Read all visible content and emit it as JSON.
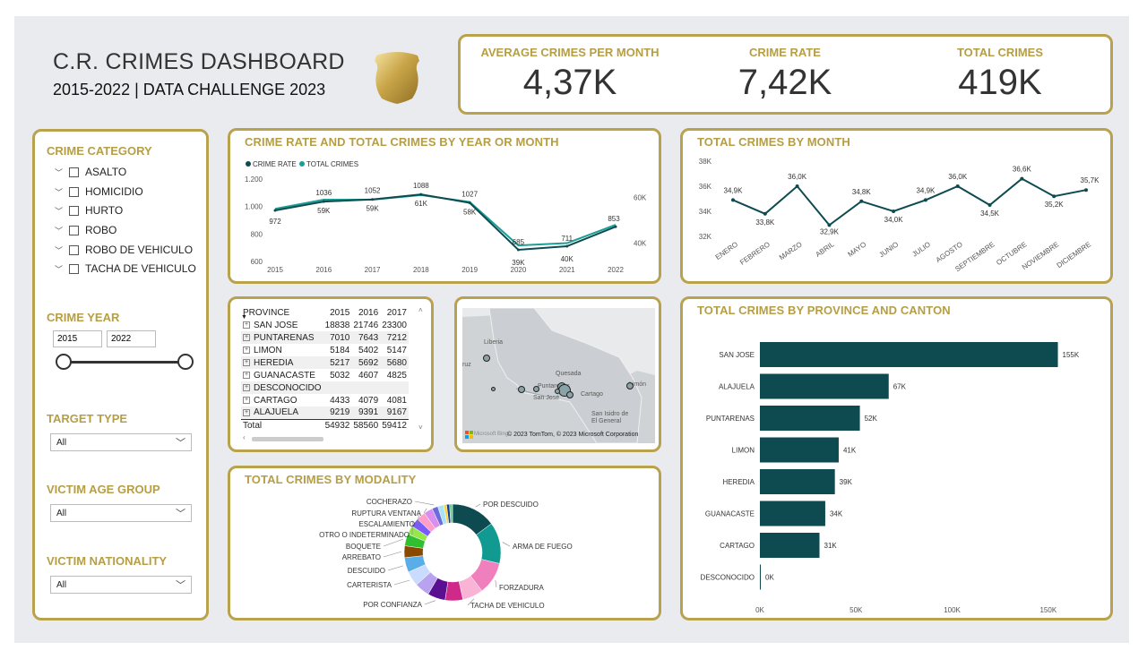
{
  "header": {
    "title": "C.R. CRIMES DASHBOARD",
    "subtitle": "2015-2022 | DATA CHALLENGE 2023",
    "badge_icon": "police-badge-icon"
  },
  "kpis": [
    {
      "label": "AVERAGE CRIMES PER MONTH",
      "value": "4,37K"
    },
    {
      "label": "CRIME RATE",
      "value": "7,42K"
    },
    {
      "label": "TOTAL CRIMES",
      "value": "419K"
    }
  ],
  "filters": {
    "category": {
      "label": "CRIME CATEGORY",
      "items": [
        "ASALTO",
        "HOMICIDIO",
        "HURTO",
        "ROBO",
        "ROBO DE VEHICULO",
        "TACHA DE VEHICULO"
      ]
    },
    "year": {
      "label": "CRIME YEAR",
      "from": "2015",
      "to": "2022"
    },
    "target_type": {
      "label": "TARGET TYPE",
      "value": "All"
    },
    "victim_age": {
      "label": "VICTIM AGE GROUP",
      "value": "All"
    },
    "victim_nat": {
      "label": "VICTIM NATIONALITY",
      "value": "All"
    }
  },
  "rate_chart": {
    "title": "CRIME RATE AND TOTAL CRIMES BY YEAR OR MONTH",
    "legend": [
      "CRIME RATE",
      "TOTAL CRIMES"
    ]
  },
  "month_chart": {
    "title": "TOTAL CRIMES BY MONTH"
  },
  "province_chart": {
    "title": "TOTAL CRIMES BY PROVINCE AND CANTON"
  },
  "modality_chart": {
    "title": "TOTAL CRIMES BY MODALITY"
  },
  "matrix": {
    "headers": [
      "PROVINCE",
      "2015",
      "2016",
      "2017"
    ],
    "rows": [
      {
        "name": "SAN JOSE",
        "v": [
          "18838",
          "21746",
          "23300"
        ]
      },
      {
        "name": "PUNTARENAS",
        "v": [
          "7010",
          "7643",
          "7212"
        ]
      },
      {
        "name": "LIMON",
        "v": [
          "5184",
          "5402",
          "5147"
        ]
      },
      {
        "name": "HEREDIA",
        "v": [
          "5217",
          "5692",
          "5680"
        ]
      },
      {
        "name": "GUANACASTE",
        "v": [
          "5032",
          "4607",
          "4825"
        ]
      },
      {
        "name": "DESCONOCIDO",
        "v": [
          "",
          "",
          ""
        ]
      },
      {
        "name": "CARTAGO",
        "v": [
          "4433",
          "4079",
          "4081"
        ]
      },
      {
        "name": "ALAJUELA",
        "v": [
          "9219",
          "9391",
          "9167"
        ]
      }
    ],
    "total": {
      "name": "Total",
      "v": [
        "54932",
        "58560",
        "59412"
      ]
    }
  },
  "map": {
    "places": [
      "Liberia",
      "Quesada",
      "Puntarenas",
      "San José",
      "Cartago",
      "San Isidro de El General",
      "Limón",
      "ruz"
    ],
    "attribution": "© 2023 TomTom, © 2023 Microsoft Corporation",
    "brand": "Microsoft Bing"
  },
  "chart_data": [
    {
      "type": "line",
      "title": "CRIME RATE AND TOTAL CRIMES BY YEAR OR MONTH",
      "categories": [
        "2015",
        "2016",
        "2017",
        "2018",
        "2019",
        "2020",
        "2021",
        "2022"
      ],
      "series": [
        {
          "name": "CRIME RATE",
          "values": [
            972,
            1036,
            1052,
            1088,
            1027,
            685,
            711,
            853
          ],
          "labels": [
            "972",
            "1036",
            "1052",
            "1088",
            "1027",
            "685",
            "711",
            "853"
          ],
          "color": "#0d4b50",
          "axis": "left"
        },
        {
          "name": "TOTAL CRIMES",
          "values": [
            55,
            59,
            59,
            61,
            58,
            39,
            40,
            48
          ],
          "labels": [
            "",
            "59K",
            "59K",
            "61K",
            "58K",
            "39K",
            "40K",
            ""
          ],
          "color": "#1a9e96",
          "axis": "right"
        }
      ],
      "y_left": {
        "ticks": [
          "600",
          "800",
          "1.000",
          "1.200"
        ],
        "range": [
          600,
          1200
        ]
      },
      "y_right": {
        "ticks": [
          "40K",
          "60K"
        ],
        "range": [
          32,
          68
        ]
      }
    },
    {
      "type": "line",
      "title": "TOTAL CRIMES BY MONTH",
      "categories": [
        "ENERO",
        "FEBRERO",
        "MARZO",
        "ABRIL",
        "MAYO",
        "JUNIO",
        "JULIO",
        "AGOSTO",
        "SEPTIEMBRE",
        "OCTUBRE",
        "NOVIEMBRE",
        "DICIEMBRE"
      ],
      "values": [
        34.9,
        33.8,
        36.0,
        32.9,
        34.8,
        34.0,
        34.9,
        36.0,
        34.5,
        36.6,
        35.2,
        35.7
      ],
      "labels": [
        "34,9K",
        "33,8K",
        "36,0K",
        "32,9K",
        "34,8K",
        "34,0K",
        "34,9K",
        "36,0K",
        "34,5K",
        "36,6K",
        "35,2K",
        "35,7K"
      ],
      "y_ticks": [
        "32K",
        "34K",
        "36K",
        "38K"
      ],
      "ylim": [
        32,
        38
      ],
      "color": "#0d4b50"
    },
    {
      "type": "bar",
      "title": "TOTAL CRIMES BY PROVINCE AND CANTON",
      "categories": [
        "SAN JOSE",
        "ALAJUELA",
        "PUNTARENAS",
        "LIMON",
        "HEREDIA",
        "GUANACASTE",
        "CARTAGO",
        "DESCONOCIDO"
      ],
      "values": [
        155,
        67,
        52,
        41,
        39,
        34,
        31,
        0
      ],
      "labels": [
        "155K",
        "67K",
        "52K",
        "41K",
        "39K",
        "34K",
        "31K",
        "0K"
      ],
      "x_ticks": [
        "0K",
        "50K",
        "100K",
        "150K"
      ],
      "xlim": [
        0,
        165
      ],
      "color": "#0d4b50"
    },
    {
      "type": "pie",
      "title": "TOTAL CRIMES BY MODALITY",
      "slices": [
        {
          "label": "POR DESCUIDO",
          "value": 15,
          "color": "#0d4b50"
        },
        {
          "label": "ARMA DE FUEGO",
          "value": 14,
          "color": "#119a92"
        },
        {
          "label": "FORZADURA",
          "value": 11,
          "color": "#f07fbd"
        },
        {
          "label": "TACHA DE VEHICULO",
          "value": 7,
          "color": "#f9b4d5"
        },
        {
          "label": "",
          "value": 6,
          "color": "#cf2a8a"
        },
        {
          "label": "POR CONFIANZA",
          "value": 6,
          "color": "#5b0f91"
        },
        {
          "label": "",
          "value": 5,
          "color": "#b9a3f0"
        },
        {
          "label": "CARTERISTA",
          "value": 5,
          "color": "#c9dcff"
        },
        {
          "label": "DESCUIDO",
          "value": 5,
          "color": "#5aaee8"
        },
        {
          "label": "ARREBATO",
          "value": 4,
          "color": "#8a4800"
        },
        {
          "label": "BOQUETE",
          "value": 4,
          "color": "#2fbf2f"
        },
        {
          "label": "",
          "value": 3,
          "color": "#95e84b"
        },
        {
          "label": "OTRO O INDETERMINADO",
          "value": 3,
          "color": "#7a5af8"
        },
        {
          "label": "ESCALAMIENTO",
          "value": 3,
          "color": "#ff9ec8"
        },
        {
          "label": "RUPTURA VENTANA",
          "value": 3,
          "color": "#d98ef0"
        },
        {
          "label": "COCHERAZO",
          "value": 2,
          "color": "#6c6bd9"
        },
        {
          "label": "",
          "value": 2,
          "color": "#a9e3f5"
        },
        {
          "label": "",
          "value": 1,
          "color": "#f5d547"
        },
        {
          "label": "",
          "value": 1,
          "color": "#1e3a8a"
        },
        {
          "label": "",
          "value": 1,
          "color": "#66cc99"
        }
      ]
    }
  ]
}
